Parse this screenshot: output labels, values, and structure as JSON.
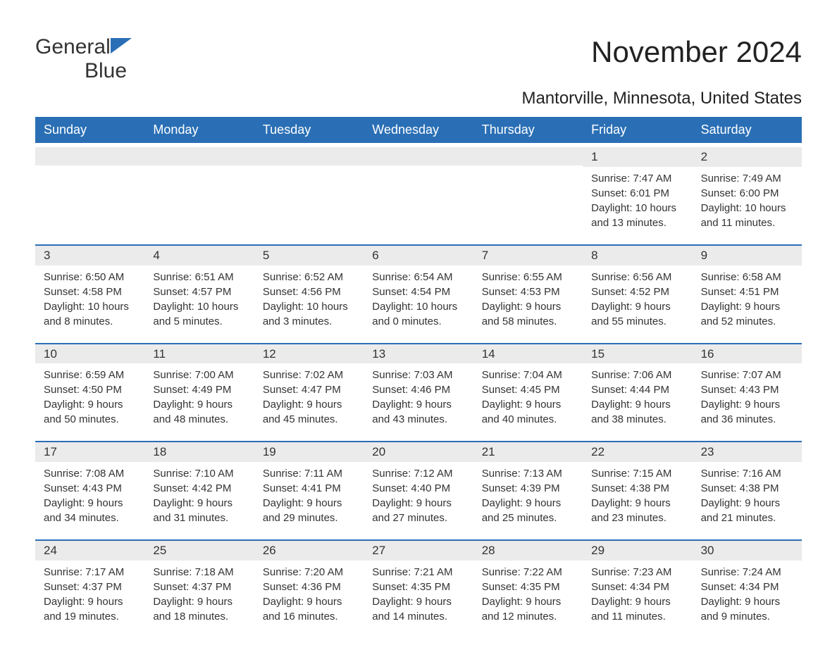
{
  "logo": {
    "text1": "General",
    "text2": "Blue"
  },
  "title": "November 2024",
  "location": "Mantorville, Minnesota, United States",
  "dayNames": [
    "Sunday",
    "Monday",
    "Tuesday",
    "Wednesday",
    "Thursday",
    "Friday",
    "Saturday"
  ],
  "colors": {
    "headerBg": "#2a6fb5",
    "headerText": "#ffffff",
    "dayNumBg": "#ebebeb",
    "borderTop": "#2a6fb5",
    "logoBlue": "#2a6fb5"
  },
  "weeks": [
    [
      null,
      null,
      null,
      null,
      null,
      {
        "n": "1",
        "sunrise": "7:47 AM",
        "sunset": "6:01 PM",
        "daylight": "10 hours and 13 minutes."
      },
      {
        "n": "2",
        "sunrise": "7:49 AM",
        "sunset": "6:00 PM",
        "daylight": "10 hours and 11 minutes."
      }
    ],
    [
      {
        "n": "3",
        "sunrise": "6:50 AM",
        "sunset": "4:58 PM",
        "daylight": "10 hours and 8 minutes."
      },
      {
        "n": "4",
        "sunrise": "6:51 AM",
        "sunset": "4:57 PM",
        "daylight": "10 hours and 5 minutes."
      },
      {
        "n": "5",
        "sunrise": "6:52 AM",
        "sunset": "4:56 PM",
        "daylight": "10 hours and 3 minutes."
      },
      {
        "n": "6",
        "sunrise": "6:54 AM",
        "sunset": "4:54 PM",
        "daylight": "10 hours and 0 minutes."
      },
      {
        "n": "7",
        "sunrise": "6:55 AM",
        "sunset": "4:53 PM",
        "daylight": "9 hours and 58 minutes."
      },
      {
        "n": "8",
        "sunrise": "6:56 AM",
        "sunset": "4:52 PM",
        "daylight": "9 hours and 55 minutes."
      },
      {
        "n": "9",
        "sunrise": "6:58 AM",
        "sunset": "4:51 PM",
        "daylight": "9 hours and 52 minutes."
      }
    ],
    [
      {
        "n": "10",
        "sunrise": "6:59 AM",
        "sunset": "4:50 PM",
        "daylight": "9 hours and 50 minutes."
      },
      {
        "n": "11",
        "sunrise": "7:00 AM",
        "sunset": "4:49 PM",
        "daylight": "9 hours and 48 minutes."
      },
      {
        "n": "12",
        "sunrise": "7:02 AM",
        "sunset": "4:47 PM",
        "daylight": "9 hours and 45 minutes."
      },
      {
        "n": "13",
        "sunrise": "7:03 AM",
        "sunset": "4:46 PM",
        "daylight": "9 hours and 43 minutes."
      },
      {
        "n": "14",
        "sunrise": "7:04 AM",
        "sunset": "4:45 PM",
        "daylight": "9 hours and 40 minutes."
      },
      {
        "n": "15",
        "sunrise": "7:06 AM",
        "sunset": "4:44 PM",
        "daylight": "9 hours and 38 minutes."
      },
      {
        "n": "16",
        "sunrise": "7:07 AM",
        "sunset": "4:43 PM",
        "daylight": "9 hours and 36 minutes."
      }
    ],
    [
      {
        "n": "17",
        "sunrise": "7:08 AM",
        "sunset": "4:43 PM",
        "daylight": "9 hours and 34 minutes."
      },
      {
        "n": "18",
        "sunrise": "7:10 AM",
        "sunset": "4:42 PM",
        "daylight": "9 hours and 31 minutes."
      },
      {
        "n": "19",
        "sunrise": "7:11 AM",
        "sunset": "4:41 PM",
        "daylight": "9 hours and 29 minutes."
      },
      {
        "n": "20",
        "sunrise": "7:12 AM",
        "sunset": "4:40 PM",
        "daylight": "9 hours and 27 minutes."
      },
      {
        "n": "21",
        "sunrise": "7:13 AM",
        "sunset": "4:39 PM",
        "daylight": "9 hours and 25 minutes."
      },
      {
        "n": "22",
        "sunrise": "7:15 AM",
        "sunset": "4:38 PM",
        "daylight": "9 hours and 23 minutes."
      },
      {
        "n": "23",
        "sunrise": "7:16 AM",
        "sunset": "4:38 PM",
        "daylight": "9 hours and 21 minutes."
      }
    ],
    [
      {
        "n": "24",
        "sunrise": "7:17 AM",
        "sunset": "4:37 PM",
        "daylight": "9 hours and 19 minutes."
      },
      {
        "n": "25",
        "sunrise": "7:18 AM",
        "sunset": "4:37 PM",
        "daylight": "9 hours and 18 minutes."
      },
      {
        "n": "26",
        "sunrise": "7:20 AM",
        "sunset": "4:36 PM",
        "daylight": "9 hours and 16 minutes."
      },
      {
        "n": "27",
        "sunrise": "7:21 AM",
        "sunset": "4:35 PM",
        "daylight": "9 hours and 14 minutes."
      },
      {
        "n": "28",
        "sunrise": "7:22 AM",
        "sunset": "4:35 PM",
        "daylight": "9 hours and 12 minutes."
      },
      {
        "n": "29",
        "sunrise": "7:23 AM",
        "sunset": "4:34 PM",
        "daylight": "9 hours and 11 minutes."
      },
      {
        "n": "30",
        "sunrise": "7:24 AM",
        "sunset": "4:34 PM",
        "daylight": "9 hours and 9 minutes."
      }
    ]
  ]
}
